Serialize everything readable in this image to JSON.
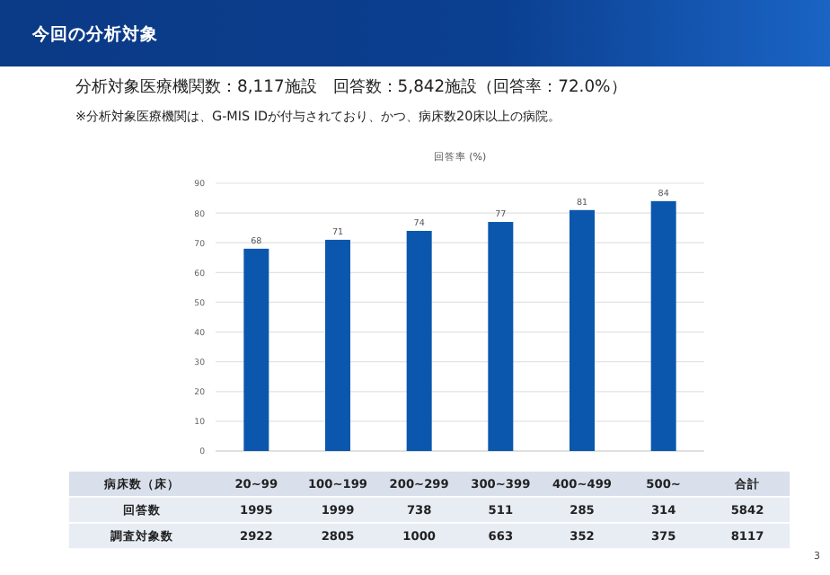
{
  "chart_data": {
    "type": "bar",
    "title": "今回の分析対象",
    "subtitle": "分析対象医療機関数：8,117施設　回答数：5,842施設（回答率：72.0%）",
    "ylabel": "回答率 (%)",
    "xlabel": "病床数（床）",
    "categories": [
      "20~99",
      "100~199",
      "200~299",
      "300~399",
      "400~499",
      "500~"
    ],
    "values": [
      68,
      71,
      74,
      77,
      81,
      84
    ],
    "color": "#0b57ad",
    "ylim": [
      0,
      90
    ],
    "yticks": [
      0,
      10,
      20,
      30,
      40,
      50,
      60,
      70,
      80,
      90
    ],
    "grid": "y",
    "data_labels": true,
    "annotations": [
      "※分析対象医療機関は、G-MIS IDが付与されており、かつ、病床数20床以上の病院。",
      "3",
      "合計",
      "回答数",
      "1995",
      "1999",
      "738",
      "511",
      "285",
      "314",
      "5842",
      "調査対象数",
      "2922",
      "2805",
      "1000",
      "663",
      "352",
      "375",
      "8117"
    ]
  }
}
